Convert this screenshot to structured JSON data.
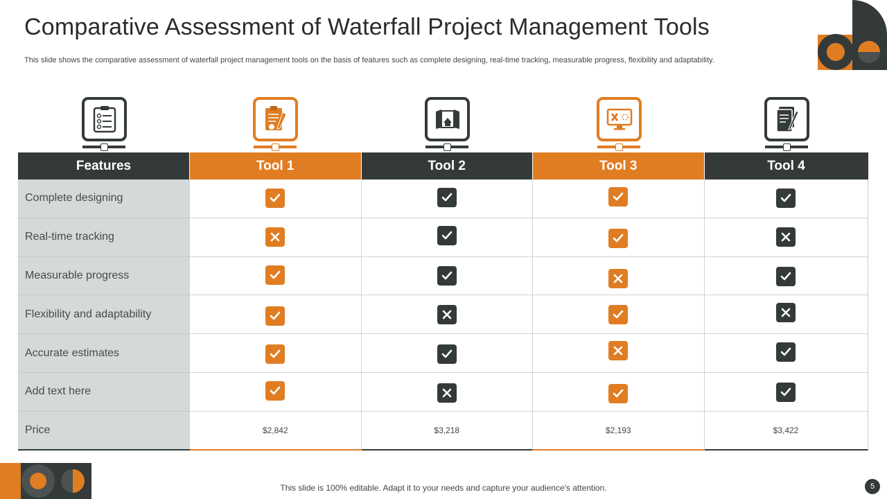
{
  "title": "Comparative Assessment of Waterfall Project Management Tools",
  "subtitle": "This slide shows the comparative assessment of waterfall project management tools on the basis of features such as complete designing, real-time tracking, measurable progress, flexibility and adaptability.",
  "colors": {
    "accent": "#e07d22",
    "dark": "#343a3a",
    "feature_bg": "#d4d9d9"
  },
  "table": {
    "headers": [
      "Features",
      "Tool 1",
      "Tool 2",
      "Tool  3",
      "Tool  4"
    ],
    "icons": [
      "checklist-icon",
      "clipboard-pen-icon",
      "blueprint-icon",
      "design-screen-icon",
      "document-edit-icon"
    ],
    "rows": [
      {
        "feature": "Complete designing",
        "values": [
          "check",
          "check",
          "check",
          "check"
        ]
      },
      {
        "feature": "Real-time tracking",
        "values": [
          "cross",
          "check",
          "check",
          "cross"
        ]
      },
      {
        "feature": "Measurable progress",
        "values": [
          "check",
          "check",
          "cross",
          "check"
        ]
      },
      {
        "feature": "Flexibility and adaptability",
        "values": [
          "check",
          "cross",
          "check",
          "cross"
        ]
      },
      {
        "feature": "Accurate estimates",
        "values": [
          "check",
          "check",
          "cross",
          "check"
        ]
      },
      {
        "feature": "Add text here",
        "values": [
          "check",
          "cross",
          "check",
          "check"
        ]
      }
    ],
    "price": {
      "label": "Price",
      "values": [
        "$2,842",
        "$3,218",
        "$2,193",
        "$3,422"
      ]
    }
  },
  "footer": "This slide is 100% editable. Adapt it to your needs and capture your audience's attention.",
  "page_number": "5"
}
